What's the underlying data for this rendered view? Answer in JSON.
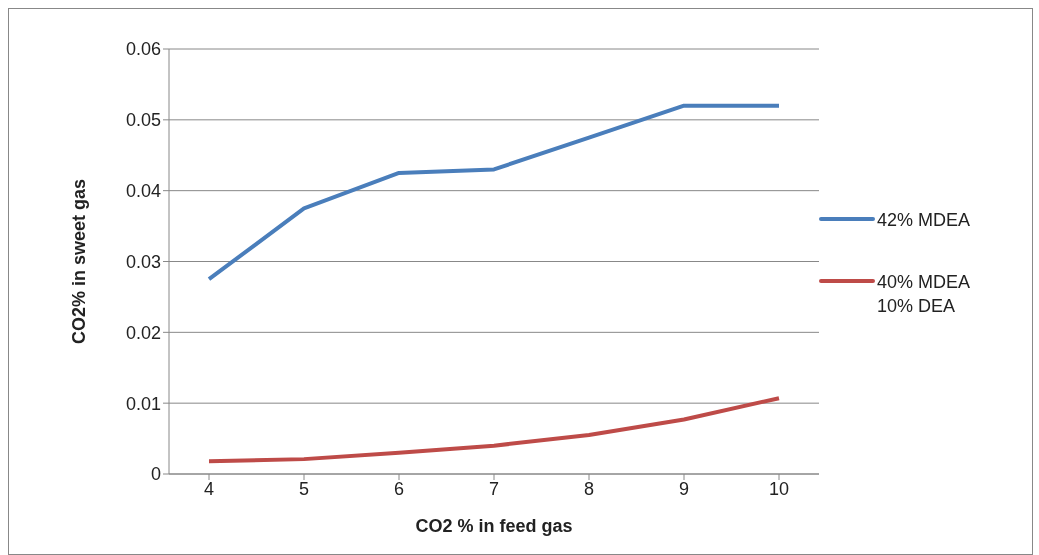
{
  "chart_data": {
    "type": "line",
    "xlabel": "CO2 % in feed gas",
    "ylabel": "CO2% in sweet gas",
    "categories": [
      "4",
      "5",
      "6",
      "7",
      "8",
      "9",
      "10"
    ],
    "series": [
      {
        "name": "42% MDEA",
        "color": "#4a7ebb",
        "values": [
          0.0275,
          0.0375,
          0.0425,
          0.043,
          0.0475,
          0.052,
          0.052
        ]
      },
      {
        "name": "40% MDEA 10% DEA",
        "color": "#be4b48",
        "values": [
          0.0018,
          0.0021,
          0.003,
          0.004,
          0.0055,
          0.0077,
          0.0107
        ]
      }
    ],
    "ylim": [
      0,
      0.06
    ],
    "yticks": [
      0,
      0.01,
      0.02,
      0.03,
      0.04,
      0.05,
      0.06
    ],
    "grid": "y",
    "legend": "right",
    "marker": "none",
    "line_style": "solid"
  }
}
